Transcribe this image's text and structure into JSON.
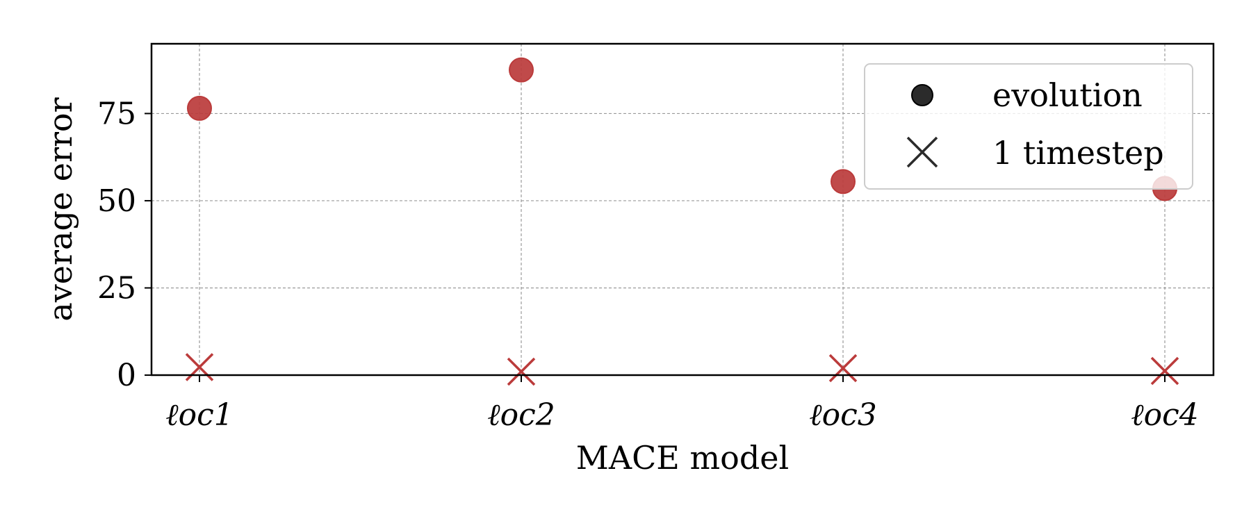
{
  "chart_data": {
    "type": "scatter",
    "xlabel": "MACE model",
    "ylabel": "average error",
    "categories": [
      "ℓoc1",
      "ℓoc2",
      "ℓoc3",
      "ℓoc4"
    ],
    "yticks": [
      0,
      25,
      50,
      75
    ],
    "ylim": [
      0,
      95
    ],
    "grid": true,
    "legend_position": "top-right",
    "series": [
      {
        "name": "evolution",
        "marker": "circle",
        "values": [
          76.5,
          87.5,
          55.5,
          53.5
        ]
      },
      {
        "name": "1 timestep",
        "marker": "x",
        "values": [
          2.3,
          1.0,
          2.0,
          1.2
        ]
      }
    ],
    "colors": {
      "points": "#bb3b3b",
      "legend_markers": "#2b2b2b",
      "grid": "#999999",
      "legend_border": "#cccccc"
    }
  }
}
